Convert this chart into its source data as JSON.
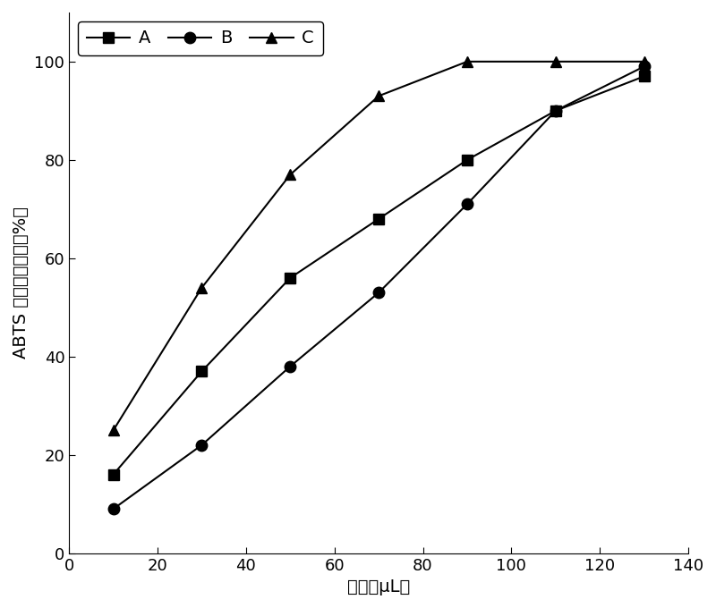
{
  "x": [
    10,
    30,
    50,
    70,
    90,
    110,
    130
  ],
  "series_A": [
    16,
    37,
    56,
    68,
    80,
    90,
    97
  ],
  "series_B": [
    9,
    22,
    38,
    53,
    71,
    90,
    99
  ],
  "series_C": [
    25,
    54,
    77,
    93,
    100,
    100,
    100
  ],
  "xlabel": "体积（μL）",
  "ylabel": "ABTS 自由基清除率（%）",
  "xlim": [
    0,
    140
  ],
  "ylim": [
    0,
    110
  ],
  "xticks": [
    0,
    20,
    40,
    60,
    80,
    100,
    120,
    140
  ],
  "yticks": [
    0,
    20,
    40,
    60,
    80,
    100
  ],
  "legend_labels": [
    "A",
    "B",
    "C"
  ],
  "line_color": "#000000",
  "marker_A": "s",
  "marker_B": "o",
  "marker_C": "^",
  "marker_size": 9,
  "line_width": 1.5,
  "label_fontsize": 14,
  "tick_fontsize": 13,
  "legend_fontsize": 14,
  "fig_width": 8.0,
  "fig_height": 6.8,
  "fig_dpi": 100
}
